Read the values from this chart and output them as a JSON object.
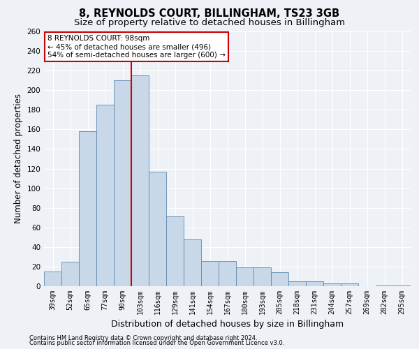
{
  "title": "8, REYNOLDS COURT, BILLINGHAM, TS23 3GB",
  "subtitle": "Size of property relative to detached houses in Billingham",
  "xlabel": "Distribution of detached houses by size in Billingham",
  "ylabel": "Number of detached properties",
  "categories": [
    "39sqm",
    "52sqm",
    "65sqm",
    "77sqm",
    "90sqm",
    "103sqm",
    "116sqm",
    "129sqm",
    "141sqm",
    "154sqm",
    "167sqm",
    "180sqm",
    "193sqm",
    "205sqm",
    "218sqm",
    "231sqm",
    "244sqm",
    "257sqm",
    "269sqm",
    "282sqm",
    "295sqm"
  ],
  "values": [
    15,
    25,
    158,
    185,
    210,
    215,
    117,
    71,
    48,
    26,
    26,
    19,
    19,
    14,
    5,
    5,
    3,
    3,
    0,
    1,
    1
  ],
  "bar_color": "#c8d8e8",
  "bar_edge_color": "#5a8ab0",
  "annotation_title": "8 REYNOLDS COURT: 98sqm",
  "annotation_line1": "← 45% of detached houses are smaller (496)",
  "annotation_line2": "54% of semi-detached houses are larger (600) →",
  "annotation_box_color": "#ffffff",
  "annotation_box_edge": "#cc0000",
  "vline_color": "#cc0000",
  "vline_x_index": 4.5,
  "ylim": [
    0,
    260
  ],
  "yticks": [
    0,
    20,
    40,
    60,
    80,
    100,
    120,
    140,
    160,
    180,
    200,
    220,
    240,
    260
  ],
  "footer1": "Contains HM Land Registry data © Crown copyright and database right 2024.",
  "footer2": "Contains public sector information licensed under the Open Government Licence v3.0.",
  "bg_color": "#eef2f7",
  "grid_color": "#ffffff",
  "title_fontsize": 10.5,
  "subtitle_fontsize": 9.5,
  "tick_fontsize": 7,
  "ylabel_fontsize": 8.5,
  "xlabel_fontsize": 9,
  "footer_fontsize": 6,
  "ann_fontsize": 7.5
}
